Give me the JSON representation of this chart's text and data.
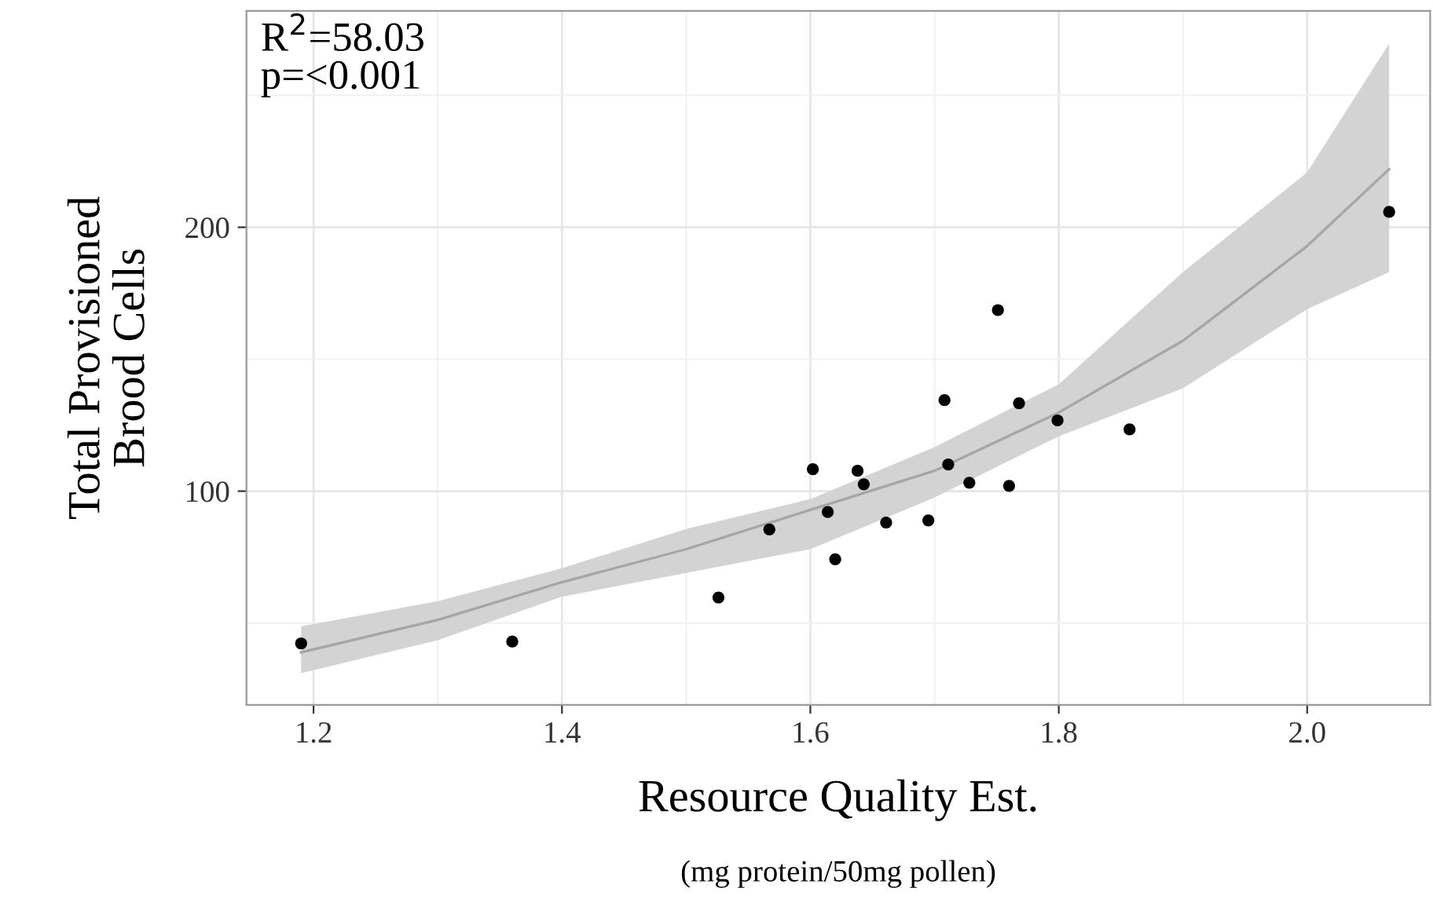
{
  "chart_data": {
    "type": "scatter",
    "xlabel": "Resource Quality Est.",
    "ylabel": "Total Provisioned\nBrood Cells",
    "annotations": [
      "R$^{2}$=58.03\np=<0.001",
      "(mg protein/50mg pollen)"
    ],
    "xlim": [
      1.146,
      2.099
    ],
    "ylim": [
      19,
      282
    ],
    "xticks": [
      1.2,
      1.4,
      1.6,
      1.8,
      {
        "value": 2.0,
        "label": "2.0"
      }
    ],
    "yticks": [
      100,
      200
    ],
    "grid": true,
    "marker": "circle",
    "series": [
      {
        "color": "#000000",
        "x": [
          1.19,
          1.36,
          1.526,
          1.567,
          1.602,
          1.614,
          1.62,
          1.638,
          1.643,
          1.661,
          1.695,
          1.708,
          1.711,
          1.728,
          1.751,
          1.76,
          1.768,
          1.799,
          1.857,
          2.066
        ],
        "values": [
          42.3,
          43,
          59.7,
          85.5,
          108.3,
          92.1,
          74.2,
          107.7,
          102.6,
          88.1,
          88.9,
          134.5,
          110.1,
          103.2,
          168.6,
          102,
          133.3,
          126.8,
          123.4,
          205.8
        ]
      },
      {
        "type": "line",
        "color": "#a6a6a6",
        "marker": "none",
        "x": [
          1.19,
          1.3,
          1.4,
          1.5,
          1.6,
          1.7,
          1.8,
          1.9,
          2.0,
          2.066
        ],
        "values": [
          38.9,
          51.2,
          65.5,
          78,
          92.9,
          107.7,
          129.8,
          157,
          192.9,
          222
        ],
        "lower": [
          31,
          43.5,
          60,
          69,
          78,
          97.6,
          120.8,
          139,
          169,
          183
        ],
        "upper": [
          48.8,
          58.3,
          70.8,
          85.7,
          97,
          116.7,
          140.5,
          183,
          220.8,
          269.6
        ]
      }
    ]
  }
}
